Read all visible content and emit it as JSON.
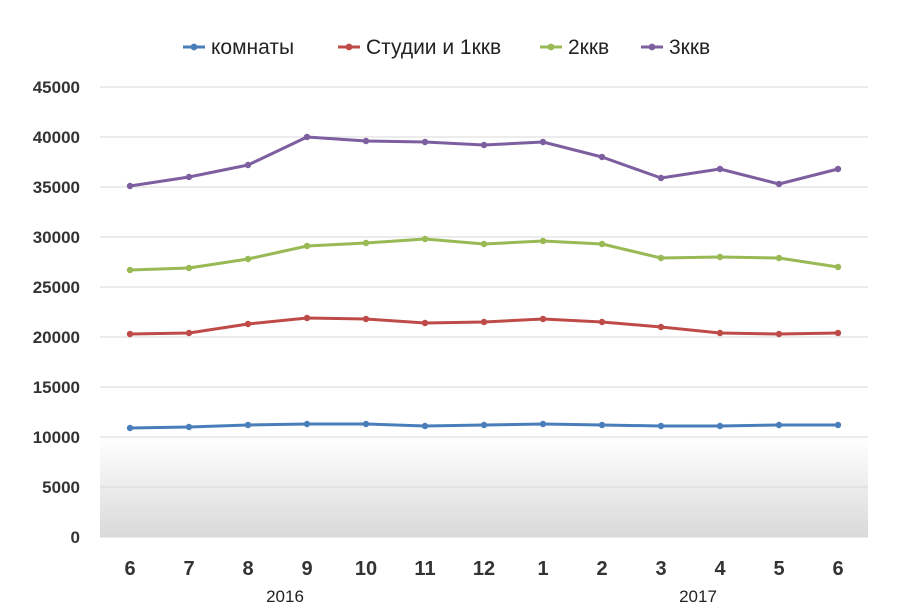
{
  "chart_data": {
    "type": "line",
    "title": "",
    "xlabel": "",
    "ylabel": "",
    "ylim": [
      0,
      45000
    ],
    "yticks": [
      "0",
      "5000",
      "10000",
      "15000",
      "20000",
      "25000",
      "30000",
      "35000",
      "40000",
      "45000"
    ],
    "categories": [
      "6",
      "7",
      "8",
      "9",
      "10",
      "11",
      "12",
      "1",
      "2",
      "3",
      "4",
      "5",
      "6"
    ],
    "year_labels": [
      {
        "text": "2016",
        "category_index": 3
      },
      {
        "text": "2017",
        "category_index": 10
      }
    ],
    "legend_position": "top",
    "grid": true,
    "series": [
      {
        "name": "комнаты",
        "color": "#4a7ebb",
        "values": [
          10900,
          11000,
          11200,
          11300,
          11300,
          11100,
          11200,
          11300,
          11200,
          11100,
          11100,
          11200,
          11200
        ]
      },
      {
        "name": "Студии и 1ккв",
        "color": "#be4b48",
        "values": [
          20300,
          20400,
          21300,
          21900,
          21800,
          21400,
          21500,
          21800,
          21500,
          21000,
          20400,
          20300,
          20400
        ]
      },
      {
        "name": "2ккв",
        "color": "#98b954",
        "values": [
          26700,
          26900,
          27800,
          29100,
          29400,
          29800,
          29300,
          29600,
          29300,
          27900,
          28000,
          27900,
          27000
        ]
      },
      {
        "name": "3ккв",
        "color": "#7d5fa0",
        "values": [
          35100,
          36000,
          37200,
          40000,
          39600,
          39500,
          39200,
          39500,
          38000,
          35900,
          36800,
          35300,
          36800
        ]
      }
    ]
  }
}
